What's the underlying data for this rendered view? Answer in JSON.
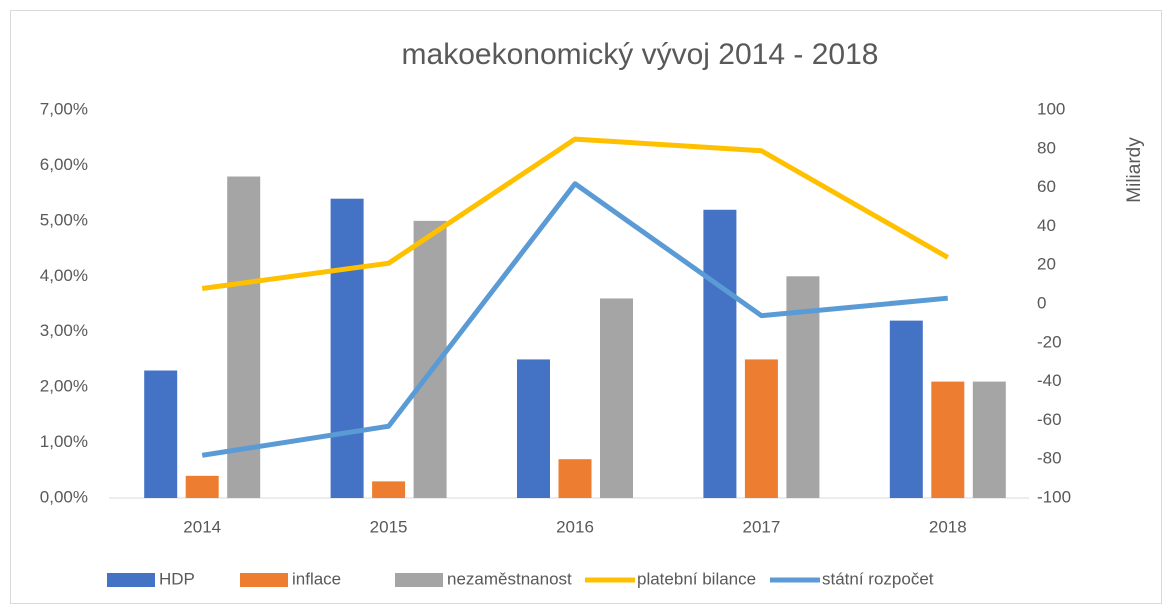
{
  "chart_data": {
    "type": "combo",
    "title": "makoekonomický vývoj 2014 - 2018",
    "y2label": "Miliardy",
    "categories": [
      "2014",
      "2015",
      "2016",
      "2017",
      "2018"
    ],
    "series": [
      {
        "name": "HDP",
        "type": "bar",
        "color": "#4472c4",
        "values": [
          2.3,
          5.4,
          2.5,
          5.2,
          3.2
        ]
      },
      {
        "name": "inflace",
        "type": "bar",
        "color": "#ed7d31",
        "values": [
          0.4,
          0.3,
          0.7,
          2.5,
          2.1
        ]
      },
      {
        "name": "nezaměstnanost",
        "type": "bar",
        "color": "#a5a5a5",
        "values": [
          5.8,
          5.0,
          3.6,
          4.0,
          2.1
        ]
      },
      {
        "name": "platební bilance",
        "type": "line",
        "axis": "y2",
        "color": "#ffc000",
        "values": [
          8,
          21,
          85,
          79,
          24
        ]
      },
      {
        "name": "státní rozpočet",
        "type": "line",
        "axis": "y2",
        "color": "#5b9bd5",
        "values": [
          -78,
          -63,
          62,
          -6,
          3
        ]
      }
    ],
    "ylim": [
      0,
      7
    ],
    "yticks": [
      {
        "value": 0,
        "label": "0,00%"
      },
      {
        "value": 1,
        "label": "1,00%"
      },
      {
        "value": 2,
        "label": "2,00%"
      },
      {
        "value": 3,
        "label": "3,00%"
      },
      {
        "value": 4,
        "label": "4,00%"
      },
      {
        "value": 5,
        "label": "5,00%"
      },
      {
        "value": 6,
        "label": "6,00%"
      },
      {
        "value": 7,
        "label": "7,00%"
      }
    ],
    "y2lim": [
      -100,
      100
    ],
    "y2ticks": [
      -100,
      -80,
      -60,
      -40,
      -20,
      0,
      20,
      40,
      60,
      80,
      100
    ],
    "legend": "bottom"
  }
}
